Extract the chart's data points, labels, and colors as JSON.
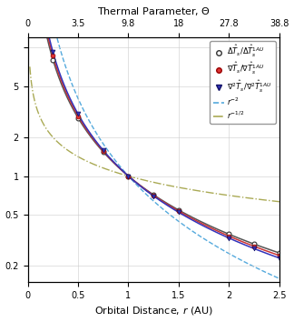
{
  "r_points": [
    0.25,
    0.5,
    0.75,
    1.0,
    1.25,
    1.5,
    2.0,
    2.25,
    2.5
  ],
  "xlim": [
    0,
    2.5
  ],
  "ylim_log": [
    0.15,
    12
  ],
  "xlabel": "Orbital Distance, $r$ (AU)",
  "top_xlabel": "Thermal Parameter, $\\Theta$",
  "bottom_xticks": [
    0,
    0.5,
    1.0,
    1.5,
    2.0,
    2.5
  ],
  "bottom_xticklabels": [
    "0",
    "0.5",
    "1",
    "1.5",
    "2",
    "2.5"
  ],
  "top_r_positions": [
    0,
    0.5,
    1.0,
    1.5,
    2.0,
    2.5
  ],
  "top_theta_labels": [
    "0",
    "3.5",
    "9.8",
    "18",
    "27.8",
    "38.8"
  ],
  "yticks": [
    0.2,
    0.5,
    1,
    2,
    5,
    10
  ],
  "yticklabels": [
    "0.2",
    "0.5",
    "1",
    "2",
    "5",
    ""
  ],
  "exp_delta": 2.0,
  "exp_grad": 2.0,
  "exp_grad2": 2.0,
  "color_line_delta": "#555555",
  "color_line_grad": "#cc3333",
  "color_line_grad2": "#3333bb",
  "color_marker_delta_face": "white",
  "color_marker_delta_edge": "#333333",
  "color_marker_grad_face": "#dd3333",
  "color_marker_grad2_face": "#3333bb",
  "color_rminus2": "#55aadd",
  "color_rminus12": "#aaaa55",
  "legend_labels": [
    "$\\Delta\\hat{T}_s/\\Delta\\hat{T}_s^{1AU}$",
    "$\\nabla\\hat{T}_s/\\nabla\\hat{T}_s^{1AU}$",
    "$\\nabla^2\\hat{T}_s/\\nabla^2\\hat{T}_s^{1AU}$",
    "$r^{-2}$",
    "$r^{-1/2}$"
  ],
  "figsize": [
    3.24,
    3.54
  ],
  "dpi": 100,
  "scale_factor_grad": 1.05,
  "scale_factor_grad2": 1.08
}
